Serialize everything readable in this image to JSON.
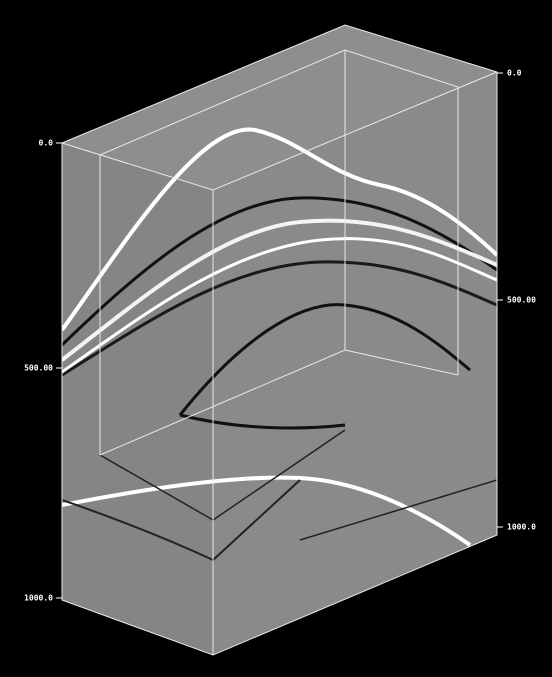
{
  "left_axis": {
    "labels": [
      "0.0",
      "500.00",
      "1000.0"
    ]
  },
  "right_axis": {
    "labels": [
      "0.0",
      "500.00",
      "1000.0"
    ]
  }
}
